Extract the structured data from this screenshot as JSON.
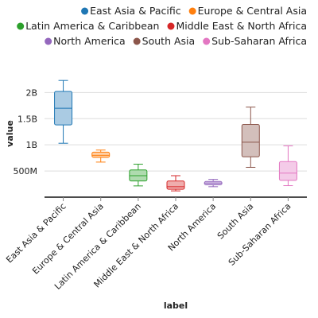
{
  "chart_data": {
    "type": "boxplot",
    "xlabel": "label",
    "ylabel": "value",
    "ylim": [
      0,
      2400000000
    ],
    "yticks": [
      {
        "value": 500000000,
        "label": "500M"
      },
      {
        "value": 1000000000,
        "label": "1B"
      },
      {
        "value": 1500000000,
        "label": "1.5B"
      },
      {
        "value": 2000000000,
        "label": "2B"
      }
    ],
    "grid": true,
    "legend_position": "top",
    "categories": [
      "East Asia & Pacific",
      "Europe & Central Asia",
      "Latin America & Caribbean",
      "Middle East & North Africa",
      "North America",
      "South Asia",
      "Sub-Saharan Africa"
    ],
    "colors": [
      "#1f77b4",
      "#ff7f0e",
      "#2ca02c",
      "#d62728",
      "#9467bd",
      "#8c564b",
      "#e377c2"
    ],
    "boxes": [
      {
        "min": 1030000000,
        "q1": 1380000000,
        "median": 1700000000,
        "q3": 2020000000,
        "max": 2230000000
      },
      {
        "min": 670000000,
        "q1": 760000000,
        "median": 800000000,
        "q3": 860000000,
        "max": 900000000
      },
      {
        "min": 215000000,
        "q1": 310000000,
        "median": 410000000,
        "q3": 520000000,
        "max": 630000000
      },
      {
        "min": 120000000,
        "q1": 150000000,
        "median": 200000000,
        "q3": 310000000,
        "max": 410000000
      },
      {
        "min": 200000000,
        "q1": 235000000,
        "median": 270000000,
        "q3": 300000000,
        "max": 340000000
      },
      {
        "min": 570000000,
        "q1": 770000000,
        "median": 1050000000,
        "q3": 1390000000,
        "max": 1720000000
      },
      {
        "min": 220000000,
        "q1": 320000000,
        "median": 460000000,
        "q3": 680000000,
        "max": 980000000
      }
    ]
  }
}
